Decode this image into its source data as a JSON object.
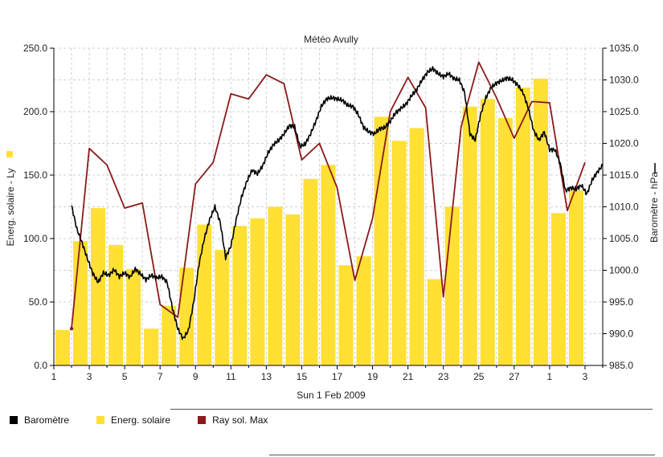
{
  "chart_data": {
    "type": "bar",
    "title": "Météo Avully",
    "xlabel": "Sun 1 Feb 2009",
    "ylabel_left": "Energ. solaire - Ly",
    "ylabel_right": "Baromètre - hPa",
    "ylim_left": [
      0,
      250
    ],
    "ylim_right": [
      985,
      1035
    ],
    "yticks_left": [
      "0.0",
      "50.0",
      "100.0",
      "150.0",
      "200.0",
      "250.0"
    ],
    "yticks_right": [
      "985.0",
      "990.0",
      "995.0",
      "1000.0",
      "1005.0",
      "1010.0",
      "1015.0",
      "1020.0",
      "1025.0",
      "1030.0",
      "1035.0"
    ],
    "xticks": [
      "1",
      "3",
      "5",
      "7",
      "9",
      "11",
      "13",
      "15",
      "17",
      "19",
      "21",
      "23",
      "25",
      "27",
      "1",
      "3"
    ],
    "grid": true,
    "legend_position": "bottom",
    "series": [
      {
        "name": "Energ. solaire",
        "kind": "bar",
        "axis": "left",
        "color": "#FFE033",
        "x": [
          1,
          2,
          3,
          4,
          5,
          6,
          7,
          8,
          9,
          10,
          11,
          12,
          13,
          14,
          15,
          16,
          17,
          18,
          19,
          20,
          21,
          22,
          23,
          24,
          25,
          26,
          27,
          28,
          29,
          30,
          31
        ],
        "values": [
          28,
          98,
          124,
          95,
          76,
          29,
          47,
          77,
          111,
          91,
          110,
          116,
          125,
          119,
          147,
          158,
          79,
          86,
          196,
          177,
          187,
          68,
          125,
          204,
          210,
          195,
          219,
          226,
          120,
          138,
          0
        ]
      },
      {
        "name": "Ray sol. Max",
        "kind": "line",
        "axis": "left",
        "color": "#8B1A1A",
        "x": [
          1.5,
          2.5,
          3.5,
          4.5,
          5.5,
          6.5,
          7.5,
          8.5,
          9.5,
          10.5,
          11.5,
          12.5,
          13.5,
          14.5,
          15.5,
          16.5,
          17.5,
          18.5,
          19.5,
          20.5,
          21.5,
          22.5,
          23.5,
          24.5,
          25.5,
          26.5,
          27.5,
          28.5,
          29.5,
          30.5
        ],
        "values": [
          29,
          171,
          158,
          124,
          128,
          48,
          38,
          143,
          160,
          214,
          210,
          229,
          222,
          162,
          175,
          140,
          67,
          116,
          200,
          227,
          203,
          54,
          188,
          239,
          211,
          179,
          208,
          207,
          122,
          160
        ]
      },
      {
        "name": "Baromètre",
        "kind": "line",
        "axis": "right",
        "color": "#000000",
        "x": [
          0.0,
          0.3,
          0.6,
          0.9,
          1.2,
          1.5,
          1.8,
          2.1,
          2.4,
          2.7,
          3.0,
          3.3,
          3.6,
          3.9,
          4.2,
          4.5,
          4.8,
          5.1,
          5.4,
          5.7,
          6.0,
          6.3,
          6.6,
          6.9,
          7.2,
          7.5,
          7.8,
          8.1,
          8.4,
          8.7,
          9.0,
          9.3,
          9.6,
          9.9,
          10.2,
          10.5,
          10.8,
          11.1,
          11.4,
          11.7,
          12.0,
          12.3,
          12.6,
          12.9,
          13.2,
          13.5,
          13.8,
          14.1,
          14.4,
          14.7,
          15.0,
          15.3,
          15.6,
          15.9,
          16.2,
          16.5,
          16.8,
          17.1,
          17.4,
          17.7,
          18.0,
          18.3,
          18.6,
          18.9,
          19.2,
          19.5,
          19.8,
          20.1,
          20.4,
          20.7,
          21.0,
          21.3,
          21.6,
          21.9,
          22.2,
          22.5,
          22.8,
          23.1,
          23.4,
          23.7,
          24.0,
          24.3,
          24.6,
          24.9,
          25.2,
          25.5,
          25.8,
          26.1,
          26.4,
          26.7,
          27.0,
          27.3,
          27.6,
          27.9,
          28.2,
          28.5,
          28.8,
          29.1,
          29.4,
          29.7,
          30.0
        ],
        "values": [
          1010.2,
          1006.5,
          1004.3,
          1001.8,
          999.5,
          998.1,
          999.6,
          999.2,
          1000.1,
          999.0,
          999.6,
          998.9,
          1000.2,
          999.4,
          998.5,
          999.2,
          998.8,
          999.0,
          998.1,
          994.0,
          990.8,
          989.2,
          990.5,
          995.0,
          1001.0,
          1005.0,
          1008.0,
          1010.0,
          1007.5,
          1002.0,
          1003.8,
          1008.0,
          1011.5,
          1014.0,
          1015.8,
          1015.2,
          1016.5,
          1018.5,
          1019.8,
          1020.5,
          1021.5,
          1022.8,
          1022.6,
          1019.5,
          1019.9,
          1021.5,
          1023.5,
          1025.8,
          1027.0,
          1027.2,
          1027.0,
          1026.8,
          1026.0,
          1025.8,
          1024.5,
          1022.5,
          1021.8,
          1021.5,
          1022.3,
          1022.5,
          1023.5,
          1024.8,
          1025.5,
          1026.2,
          1027.5,
          1028.5,
          1030.0,
          1031.2,
          1031.8,
          1031.0,
          1030.5,
          1031.0,
          1030.2,
          1030.0,
          1028.0,
          1021.5,
          1020.5,
          1024.5,
          1027.2,
          1028.8,
          1029.5,
          1029.9,
          1030.3,
          1030.0,
          1029.2,
          1028.0,
          1025.5,
          1022.0,
          1020.5,
          1021.8,
          1019.0,
          1019.0,
          1016.8,
          1012.5,
          1013.0,
          1012.8,
          1013.4,
          1012.0,
          1014.2,
          1015.5,
          1016.5
        ]
      }
    ]
  }
}
